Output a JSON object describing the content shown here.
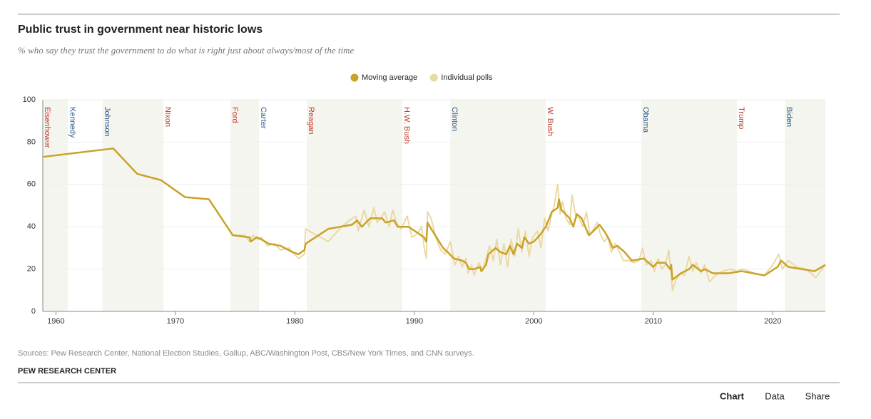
{
  "chart_data": {
    "type": "line",
    "title": "Public trust in government near historic lows",
    "subtitle": "% who say they trust the government to do what is right just about always/most of the time",
    "source": "Sources: Pew Research Center, National Election Studies, Gallup, ABC/Washington Post, CBS/New York Times, and CNN surveys.",
    "publisher": "PEW RESEARCH CENTER",
    "tabs": [
      "Chart",
      "Data",
      "Share"
    ],
    "xlim": [
      1958.9,
      2024.4
    ],
    "ylim": [
      0,
      100
    ],
    "xticks": [
      1960,
      1970,
      1980,
      1990,
      2000,
      2010,
      2020
    ],
    "yticks": [
      0,
      20,
      40,
      60,
      80,
      100
    ],
    "grid": true,
    "legend": "top",
    "presidencies": [
      {
        "name": "Eisenhower",
        "start": 1958.9,
        "end": 1961,
        "color": "#c0392b"
      },
      {
        "name": "Kennedy",
        "start": 1961,
        "end": 1963.9,
        "color": "#2c5b8a"
      },
      {
        "name": "Johnson",
        "start": 1963.9,
        "end": 1969,
        "color": "#2c5b8a"
      },
      {
        "name": "Nixon",
        "start": 1969,
        "end": 1974.6,
        "color": "#c0392b"
      },
      {
        "name": "Ford",
        "start": 1974.6,
        "end": 1977,
        "color": "#c0392b"
      },
      {
        "name": "Carter",
        "start": 1977,
        "end": 1981,
        "color": "#2c5b8a"
      },
      {
        "name": "Reagan",
        "start": 1981,
        "end": 1989,
        "color": "#c0392b"
      },
      {
        "name": "H.W. Bush",
        "start": 1989,
        "end": 1993,
        "color": "#c0392b"
      },
      {
        "name": "Clinton",
        "start": 1993,
        "end": 2001,
        "color": "#2c5b8a"
      },
      {
        "name": "W. Bush",
        "start": 2001,
        "end": 2009,
        "color": "#c0392b"
      },
      {
        "name": "Obama",
        "start": 2009,
        "end": 2017,
        "color": "#2c5b8a"
      },
      {
        "name": "Trump",
        "start": 2017,
        "end": 2021,
        "color": "#c0392b"
      },
      {
        "name": "Biden",
        "start": 2021,
        "end": 2024.4,
        "color": "#2c5b8a"
      }
    ],
    "series": [
      {
        "name": "Individual polls",
        "color": "#ebd9a4",
        "x": [
          1958.9,
          1964.8,
          1966.8,
          1968.8,
          1970.8,
          1972.8,
          1974.8,
          1975.8,
          1976.2,
          1976.5,
          1976.9,
          1977.2,
          1977.7,
          1978.3,
          1978.8,
          1979.5,
          1980.3,
          1980.8,
          1980.9,
          1981.5,
          1982.8,
          1983.9,
          1984.8,
          1985.1,
          1985.3,
          1985.8,
          1986.2,
          1986.6,
          1986.9,
          1987.2,
          1987.5,
          1987.9,
          1988.2,
          1988.5,
          1988.9,
          1989.4,
          1989.8,
          1990.3,
          1990.6,
          1990.8,
          1991.0,
          1991.1,
          1991.4,
          1991.8,
          1992.2,
          1992.6,
          1993.0,
          1993.4,
          1993.7,
          1994.0,
          1994.3,
          1994.5,
          1994.8,
          1995.0,
          1995.4,
          1995.7,
          1996.0,
          1996.3,
          1996.6,
          1996.9,
          1997.2,
          1997.5,
          1997.8,
          1998.1,
          1998.4,
          1998.7,
          1999.0,
          1999.3,
          1999.6,
          1999.9,
          2000.3,
          2000.6,
          2000.9,
          2001.2,
          2001.5,
          2001.7,
          2001.9,
          2002.0,
          2002.2,
          2002.4,
          2002.7,
          2003.0,
          2003.2,
          2003.5,
          2003.8,
          2004.1,
          2004.4,
          2004.7,
          2005.0,
          2005.3,
          2005.6,
          2005.9,
          2006.2,
          2006.5,
          2006.8,
          2007.1,
          2007.5,
          2008.0,
          2008.4,
          2008.8,
          2009.1,
          2009.4,
          2009.8,
          2010.1,
          2010.4,
          2010.7,
          2011.0,
          2011.3,
          2011.6,
          2011.9,
          2012.3,
          2012.6,
          2013.0,
          2013.3,
          2013.6,
          2014.0,
          2014.3,
          2014.7,
          2015.2,
          2015.8,
          2016.4,
          2017.0,
          2017.5,
          2018.5,
          2019.3,
          2020.0,
          2020.5,
          2020.8,
          2021.3,
          2022.0,
          2022.8,
          2023.6,
          2024.4
        ],
        "values": [
          73,
          77,
          65,
          62,
          54,
          53,
          36,
          36,
          33,
          36,
          34,
          35,
          31,
          32,
          29,
          30,
          25,
          27,
          39,
          37,
          33,
          40,
          44,
          45,
          38,
          48,
          40,
          49,
          42,
          44,
          47,
          40,
          48,
          42,
          39,
          45,
          35,
          37,
          40,
          31,
          25,
          47,
          44,
          35,
          29,
          27,
          33,
          22,
          26,
          21,
          25,
          18,
          22,
          17,
          23,
          19,
          25,
          31,
          24,
          34,
          22,
          32,
          21,
          34,
          26,
          39,
          28,
          38,
          26,
          35,
          38,
          30,
          44,
          38,
          46,
          50,
          57,
          60,
          46,
          52,
          44,
          41,
          55,
          45,
          44,
          40,
          47,
          36,
          39,
          42,
          36,
          33,
          35,
          28,
          32,
          29,
          24,
          24,
          23,
          24,
          30,
          22,
          24,
          19,
          25,
          20,
          22,
          29,
          10,
          15,
          18,
          17,
          26,
          19,
          23,
          18,
          22,
          14,
          17,
          19,
          20,
          19,
          20,
          18,
          17,
          22,
          27,
          20,
          24,
          21,
          20,
          16,
          22
        ]
      },
      {
        "name": "Moving average",
        "color": "#c9a227",
        "x": [
          1958.9,
          1964.8,
          1966.8,
          1968.8,
          1970.8,
          1972.8,
          1974.8,
          1976.2,
          1976.3,
          1976.8,
          1977.2,
          1977.8,
          1978.8,
          1979.8,
          1980.3,
          1980.8,
          1980.9,
          1982.8,
          1984.8,
          1985.2,
          1985.6,
          1986.3,
          1987.3,
          1987.6,
          1988.3,
          1988.6,
          1989.5,
          1990.3,
          1990.8,
          1991.0,
          1991.1,
          1991.3,
          1992.4,
          1992.8,
          1993.3,
          1994.0,
          1994.3,
          1994.6,
          1995.0,
          1995.5,
          1995.6,
          1996.0,
          1996.2,
          1996.8,
          1997.2,
          1997.7,
          1998.0,
          1998.3,
          1998.6,
          1999.0,
          1999.2,
          1999.6,
          2000.0,
          2000.5,
          2001.0,
          2001.3,
          2001.5,
          2002.0,
          2002.1,
          2002.3,
          2003.0,
          2003.3,
          2003.6,
          2004.0,
          2004.6,
          2005.0,
          2005.5,
          2006.0,
          2006.3,
          2006.6,
          2007.0,
          2007.6,
          2008.2,
          2009.2,
          2010.0,
          2010.3,
          2011.0,
          2011.4,
          2011.5,
          2011.6,
          2012.3,
          2013.0,
          2013.3,
          2014.0,
          2014.3,
          2015.0,
          2016.3,
          2017.4,
          2019.3,
          2020.4,
          2020.7,
          2021.3,
          2023.5,
          2024.4
        ],
        "values": [
          73,
          77,
          65,
          62,
          54,
          53,
          36,
          35,
          33,
          35,
          34,
          32,
          31,
          28,
          27,
          29,
          32,
          39,
          41,
          43,
          40,
          44,
          44,
          42,
          43,
          40,
          40,
          37,
          35,
          33,
          42,
          40,
          30,
          28,
          25,
          24,
          23,
          20,
          20,
          21,
          19,
          22,
          27,
          30,
          28,
          27,
          31,
          27,
          32,
          30,
          35,
          32,
          33,
          36,
          40,
          44,
          47,
          49,
          53,
          48,
          44,
          40,
          46,
          44,
          36,
          38,
          41,
          37,
          34,
          30,
          31,
          28,
          24,
          25,
          21,
          23,
          23,
          20,
          22,
          15,
          18,
          20,
          22,
          19,
          20,
          18,
          18,
          19,
          17,
          21,
          24,
          21,
          19,
          22
        ]
      }
    ]
  }
}
